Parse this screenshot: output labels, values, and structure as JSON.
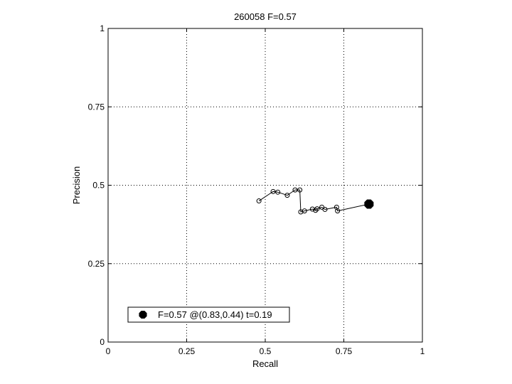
{
  "chart_data": {
    "type": "line",
    "title": "260058 F=0.57",
    "xlabel": "Recall",
    "ylabel": "Precision",
    "xlim": [
      0,
      1
    ],
    "ylim": [
      0,
      1
    ],
    "xticks": [
      0,
      0.25,
      0.5,
      0.75,
      1
    ],
    "yticks": [
      0,
      0.25,
      0.5,
      0.75,
      1
    ],
    "xtick_labels": [
      "0",
      "0.25",
      "0.5",
      "0.75",
      "1"
    ],
    "ytick_labels": [
      "0",
      "0.25",
      "0.5",
      "0.75",
      "1"
    ],
    "grid": true,
    "grid_style": "dotted",
    "legend_position": "bottom-left",
    "series": [
      {
        "marker": "open-circle",
        "color": "#000000",
        "x": [
          0.48,
          0.525,
          0.54,
          0.57,
          0.595,
          0.61,
          0.613,
          0.625,
          0.65,
          0.66,
          0.665,
          0.68,
          0.69,
          0.727,
          0.73,
          0.83
        ],
        "y": [
          0.45,
          0.48,
          0.478,
          0.468,
          0.485,
          0.485,
          0.415,
          0.418,
          0.424,
          0.42,
          0.425,
          0.43,
          0.423,
          0.43,
          0.418,
          0.44
        ]
      }
    ],
    "best_point": {
      "x": 0.83,
      "y": 0.44,
      "marker": "filled-octagon",
      "color": "#000000",
      "label": "F=0.57 @(0.83,0.44) t=0.19"
    }
  }
}
